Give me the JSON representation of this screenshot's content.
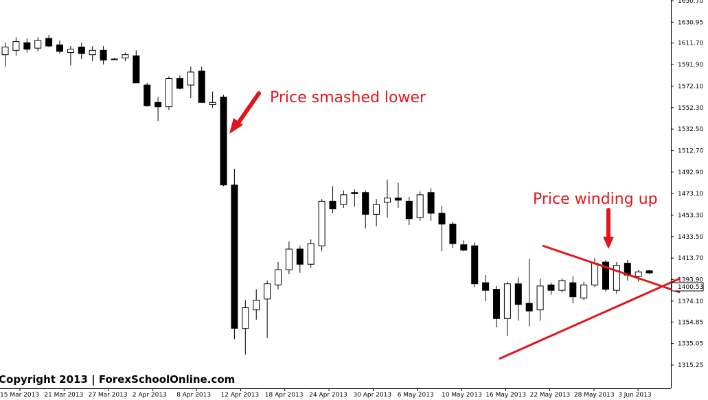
{
  "chart_data": {
    "type": "candlestick",
    "title": "",
    "current_price": "1400.53",
    "y_ticks": [
      "1650.70",
      "1630.95",
      "1611.70",
      "1591.90",
      "1572.10",
      "1552.30",
      "1532.50",
      "1512.70",
      "1492.90",
      "1473.10",
      "1453.30",
      "1433.50",
      "1413.70",
      "1393.90",
      "1374.10",
      "1354.85",
      "1335.05",
      "1315.25"
    ],
    "x_ticks": [
      "15 Mar 2013",
      "21 Mar 2013",
      "27 Mar 2013",
      "2 Apr 2013",
      "8 Apr 2013",
      "12 Apr 2013",
      "18 Apr 2013",
      "24 Apr 2013",
      "30 Apr 2013",
      "6 May 2013",
      "10 May 2013",
      "16 May 2013",
      "22 May 2013",
      "28 May 2013",
      "3 Jun 2013"
    ],
    "candles": [
      {
        "o": 1601,
        "h": 1612,
        "l": 1590,
        "c": 1608
      },
      {
        "o": 1605,
        "h": 1617,
        "l": 1600,
        "c": 1613
      },
      {
        "o": 1612,
        "h": 1616,
        "l": 1603,
        "c": 1606
      },
      {
        "o": 1607,
        "h": 1617,
        "l": 1604,
        "c": 1614
      },
      {
        "o": 1616,
        "h": 1619,
        "l": 1608,
        "c": 1609
      },
      {
        "o": 1610,
        "h": 1614,
        "l": 1602,
        "c": 1604
      },
      {
        "o": 1603,
        "h": 1609,
        "l": 1591,
        "c": 1606
      },
      {
        "o": 1608,
        "h": 1612,
        "l": 1597,
        "c": 1602
      },
      {
        "o": 1601,
        "h": 1609,
        "l": 1595,
        "c": 1605
      },
      {
        "o": 1605,
        "h": 1609,
        "l": 1592,
        "c": 1596
      },
      {
        "o": 1597,
        "h": 1598,
        "l": 1596,
        "c": 1597
      },
      {
        "o": 1598,
        "h": 1603,
        "l": 1595,
        "c": 1601
      },
      {
        "o": 1600,
        "h": 1605,
        "l": 1575,
        "c": 1575
      },
      {
        "o": 1573,
        "h": 1575,
        "l": 1553,
        "c": 1554
      },
      {
        "o": 1557,
        "h": 1562,
        "l": 1540,
        "c": 1553
      },
      {
        "o": 1553,
        "h": 1581,
        "l": 1550,
        "c": 1579
      },
      {
        "o": 1579,
        "h": 1582,
        "l": 1569,
        "c": 1570
      },
      {
        "o": 1573,
        "h": 1590,
        "l": 1561,
        "c": 1585
      },
      {
        "o": 1586,
        "h": 1590,
        "l": 1557,
        "c": 1557
      },
      {
        "o": 1555,
        "h": 1567,
        "l": 1552,
        "c": 1557
      },
      {
        "o": 1562,
        "h": 1564,
        "l": 1480,
        "c": 1481
      },
      {
        "o": 1481,
        "h": 1496,
        "l": 1339,
        "c": 1349
      },
      {
        "o": 1349,
        "h": 1375,
        "l": 1325,
        "c": 1368
      },
      {
        "o": 1366,
        "h": 1385,
        "l": 1357,
        "c": 1375
      },
      {
        "o": 1376,
        "h": 1393,
        "l": 1340,
        "c": 1390
      },
      {
        "o": 1389,
        "h": 1410,
        "l": 1385,
        "c": 1403
      },
      {
        "o": 1403,
        "h": 1429,
        "l": 1399,
        "c": 1422
      },
      {
        "o": 1422,
        "h": 1425,
        "l": 1400,
        "c": 1408
      },
      {
        "o": 1408,
        "h": 1431,
        "l": 1405,
        "c": 1427
      },
      {
        "o": 1425,
        "h": 1468,
        "l": 1420,
        "c": 1466
      },
      {
        "o": 1466,
        "h": 1480,
        "l": 1455,
        "c": 1459
      },
      {
        "o": 1463,
        "h": 1476,
        "l": 1460,
        "c": 1472
      },
      {
        "o": 1474,
        "h": 1477,
        "l": 1461,
        "c": 1473
      },
      {
        "o": 1474,
        "h": 1476,
        "l": 1441,
        "c": 1454
      },
      {
        "o": 1454,
        "h": 1468,
        "l": 1443,
        "c": 1463
      },
      {
        "o": 1465,
        "h": 1486,
        "l": 1451,
        "c": 1469
      },
      {
        "o": 1469,
        "h": 1483,
        "l": 1460,
        "c": 1467
      },
      {
        "o": 1466,
        "h": 1470,
        "l": 1444,
        "c": 1450
      },
      {
        "o": 1451,
        "h": 1475,
        "l": 1448,
        "c": 1472
      },
      {
        "o": 1474,
        "h": 1478,
        "l": 1448,
        "c": 1455
      },
      {
        "o": 1455,
        "h": 1462,
        "l": 1420,
        "c": 1445
      },
      {
        "o": 1445,
        "h": 1447,
        "l": 1423,
        "c": 1427
      },
      {
        "o": 1426,
        "h": 1430,
        "l": 1420,
        "c": 1421
      },
      {
        "o": 1425,
        "h": 1428,
        "l": 1387,
        "c": 1390
      },
      {
        "o": 1391,
        "h": 1398,
        "l": 1374,
        "c": 1384
      },
      {
        "o": 1385,
        "h": 1388,
        "l": 1350,
        "c": 1358
      },
      {
        "o": 1358,
        "h": 1392,
        "l": 1342,
        "c": 1390
      },
      {
        "o": 1390,
        "h": 1396,
        "l": 1356,
        "c": 1371
      },
      {
        "o": 1372,
        "h": 1413,
        "l": 1351,
        "c": 1365
      },
      {
        "o": 1366,
        "h": 1395,
        "l": 1356,
        "c": 1388
      },
      {
        "o": 1389,
        "h": 1391,
        "l": 1380,
        "c": 1384
      },
      {
        "o": 1384,
        "h": 1395,
        "l": 1382,
        "c": 1393
      },
      {
        "o": 1391,
        "h": 1397,
        "l": 1372,
        "c": 1378
      },
      {
        "o": 1377,
        "h": 1392,
        "l": 1375,
        "c": 1389
      },
      {
        "o": 1389,
        "h": 1414,
        "l": 1387,
        "c": 1409
      },
      {
        "o": 1410,
        "h": 1412,
        "l": 1383,
        "c": 1385
      },
      {
        "o": 1384,
        "h": 1410,
        "l": 1381,
        "c": 1407
      },
      {
        "o": 1409,
        "h": 1412,
        "l": 1393,
        "c": 1398
      },
      {
        "o": 1397,
        "h": 1403,
        "l": 1392,
        "c": 1401
      },
      {
        "o": 1402,
        "h": 1403,
        "l": 1399,
        "c": 1400
      }
    ]
  },
  "annotations": {
    "smashed": "Price smashed lower",
    "winding": "Price winding up",
    "copyright": "Copyright 2013 | ForexSchoolOnline.com"
  },
  "colors": {
    "bull_body": "#ffffff",
    "bear_body": "#000000",
    "annotation": "#e0161b"
  }
}
